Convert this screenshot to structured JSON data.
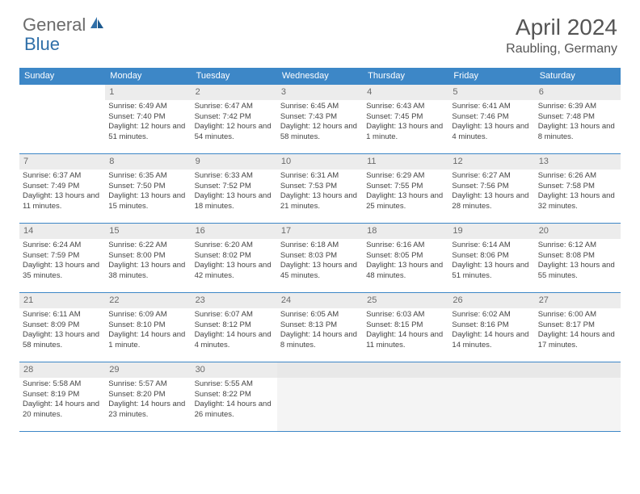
{
  "brand": {
    "part1": "General",
    "part2": "Blue"
  },
  "title": "April 2024",
  "location": "Raubling, Germany",
  "colors": {
    "header_bg": "#3d87c7",
    "header_text": "#ffffff",
    "daynum_bg": "#ececec",
    "daynum_text": "#6a6a6a",
    "border": "#3d87c7",
    "body_text": "#444444",
    "title_text": "#555555",
    "logo_gray": "#6b6b6b",
    "logo_blue": "#2f6fa8",
    "trailing_bg": "#f4f4f4"
  },
  "weekdays": [
    "Sunday",
    "Monday",
    "Tuesday",
    "Wednesday",
    "Thursday",
    "Friday",
    "Saturday"
  ],
  "days": {
    "1": {
      "sr": "Sunrise: 6:49 AM",
      "ss": "Sunset: 7:40 PM",
      "dl": "Daylight: 12 hours and 51 minutes."
    },
    "2": {
      "sr": "Sunrise: 6:47 AM",
      "ss": "Sunset: 7:42 PM",
      "dl": "Daylight: 12 hours and 54 minutes."
    },
    "3": {
      "sr": "Sunrise: 6:45 AM",
      "ss": "Sunset: 7:43 PM",
      "dl": "Daylight: 12 hours and 58 minutes."
    },
    "4": {
      "sr": "Sunrise: 6:43 AM",
      "ss": "Sunset: 7:45 PM",
      "dl": "Daylight: 13 hours and 1 minute."
    },
    "5": {
      "sr": "Sunrise: 6:41 AM",
      "ss": "Sunset: 7:46 PM",
      "dl": "Daylight: 13 hours and 4 minutes."
    },
    "6": {
      "sr": "Sunrise: 6:39 AM",
      "ss": "Sunset: 7:48 PM",
      "dl": "Daylight: 13 hours and 8 minutes."
    },
    "7": {
      "sr": "Sunrise: 6:37 AM",
      "ss": "Sunset: 7:49 PM",
      "dl": "Daylight: 13 hours and 11 minutes."
    },
    "8": {
      "sr": "Sunrise: 6:35 AM",
      "ss": "Sunset: 7:50 PM",
      "dl": "Daylight: 13 hours and 15 minutes."
    },
    "9": {
      "sr": "Sunrise: 6:33 AM",
      "ss": "Sunset: 7:52 PM",
      "dl": "Daylight: 13 hours and 18 minutes."
    },
    "10": {
      "sr": "Sunrise: 6:31 AM",
      "ss": "Sunset: 7:53 PM",
      "dl": "Daylight: 13 hours and 21 minutes."
    },
    "11": {
      "sr": "Sunrise: 6:29 AM",
      "ss": "Sunset: 7:55 PM",
      "dl": "Daylight: 13 hours and 25 minutes."
    },
    "12": {
      "sr": "Sunrise: 6:27 AM",
      "ss": "Sunset: 7:56 PM",
      "dl": "Daylight: 13 hours and 28 minutes."
    },
    "13": {
      "sr": "Sunrise: 6:26 AM",
      "ss": "Sunset: 7:58 PM",
      "dl": "Daylight: 13 hours and 32 minutes."
    },
    "14": {
      "sr": "Sunrise: 6:24 AM",
      "ss": "Sunset: 7:59 PM",
      "dl": "Daylight: 13 hours and 35 minutes."
    },
    "15": {
      "sr": "Sunrise: 6:22 AM",
      "ss": "Sunset: 8:00 PM",
      "dl": "Daylight: 13 hours and 38 minutes."
    },
    "16": {
      "sr": "Sunrise: 6:20 AM",
      "ss": "Sunset: 8:02 PM",
      "dl": "Daylight: 13 hours and 42 minutes."
    },
    "17": {
      "sr": "Sunrise: 6:18 AM",
      "ss": "Sunset: 8:03 PM",
      "dl": "Daylight: 13 hours and 45 minutes."
    },
    "18": {
      "sr": "Sunrise: 6:16 AM",
      "ss": "Sunset: 8:05 PM",
      "dl": "Daylight: 13 hours and 48 minutes."
    },
    "19": {
      "sr": "Sunrise: 6:14 AM",
      "ss": "Sunset: 8:06 PM",
      "dl": "Daylight: 13 hours and 51 minutes."
    },
    "20": {
      "sr": "Sunrise: 6:12 AM",
      "ss": "Sunset: 8:08 PM",
      "dl": "Daylight: 13 hours and 55 minutes."
    },
    "21": {
      "sr": "Sunrise: 6:11 AM",
      "ss": "Sunset: 8:09 PM",
      "dl": "Daylight: 13 hours and 58 minutes."
    },
    "22": {
      "sr": "Sunrise: 6:09 AM",
      "ss": "Sunset: 8:10 PM",
      "dl": "Daylight: 14 hours and 1 minute."
    },
    "23": {
      "sr": "Sunrise: 6:07 AM",
      "ss": "Sunset: 8:12 PM",
      "dl": "Daylight: 14 hours and 4 minutes."
    },
    "24": {
      "sr": "Sunrise: 6:05 AM",
      "ss": "Sunset: 8:13 PM",
      "dl": "Daylight: 14 hours and 8 minutes."
    },
    "25": {
      "sr": "Sunrise: 6:03 AM",
      "ss": "Sunset: 8:15 PM",
      "dl": "Daylight: 14 hours and 11 minutes."
    },
    "26": {
      "sr": "Sunrise: 6:02 AM",
      "ss": "Sunset: 8:16 PM",
      "dl": "Daylight: 14 hours and 14 minutes."
    },
    "27": {
      "sr": "Sunrise: 6:00 AM",
      "ss": "Sunset: 8:17 PM",
      "dl": "Daylight: 14 hours and 17 minutes."
    },
    "28": {
      "sr": "Sunrise: 5:58 AM",
      "ss": "Sunset: 8:19 PM",
      "dl": "Daylight: 14 hours and 20 minutes."
    },
    "29": {
      "sr": "Sunrise: 5:57 AM",
      "ss": "Sunset: 8:20 PM",
      "dl": "Daylight: 14 hours and 23 minutes."
    },
    "30": {
      "sr": "Sunrise: 5:55 AM",
      "ss": "Sunset: 8:22 PM",
      "dl": "Daylight: 14 hours and 26 minutes."
    }
  },
  "layout": {
    "leading_blanks": 1,
    "total_days": 30,
    "rows": 5,
    "cols": 7
  }
}
